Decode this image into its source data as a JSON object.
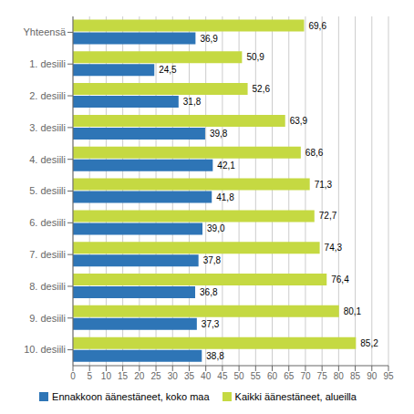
{
  "chart_data": {
    "type": "bar",
    "orientation": "horizontal",
    "categories": [
      "Yhteensä",
      "1. desiili",
      "2. desiili",
      "3. desiili",
      "4. desiili",
      "5. desiili",
      "6. desiili",
      "7. desiili",
      "8. desiili",
      "9. desiili",
      "10. desiili"
    ],
    "series": [
      {
        "name": "Ennakkoon äänestäneet, koko maa",
        "color": "#2E75B6",
        "values": [
          36.9,
          24.5,
          31.8,
          39.8,
          42.1,
          41.8,
          39.0,
          37.8,
          36.8,
          37.3,
          38.8
        ],
        "value_labels": [
          "36,9",
          "24,5",
          "31,8",
          "39,8",
          "42,1",
          "41,8",
          "39,0",
          "37,8",
          "36,8",
          "37,3",
          "38,8"
        ]
      },
      {
        "name": "Kaikki äänestäneet, alueilla",
        "color": "#C5D942",
        "values": [
          69.6,
          50.9,
          52.6,
          63.9,
          68.6,
          71.3,
          72.7,
          74.3,
          76.4,
          80.1,
          85.2
        ],
        "value_labels": [
          "69,6",
          "50,9",
          "52,6",
          "63,9",
          "68,6",
          "71,3",
          "72,7",
          "74,3",
          "76,4",
          "80,1",
          "85,2"
        ]
      }
    ],
    "xlim": [
      0,
      95
    ],
    "xticks": [
      0,
      5,
      10,
      15,
      20,
      25,
      30,
      35,
      40,
      45,
      50,
      55,
      60,
      65,
      70,
      75,
      80,
      85,
      90,
      95
    ],
    "grid": true,
    "data_labels": true,
    "legend": "bottom"
  }
}
